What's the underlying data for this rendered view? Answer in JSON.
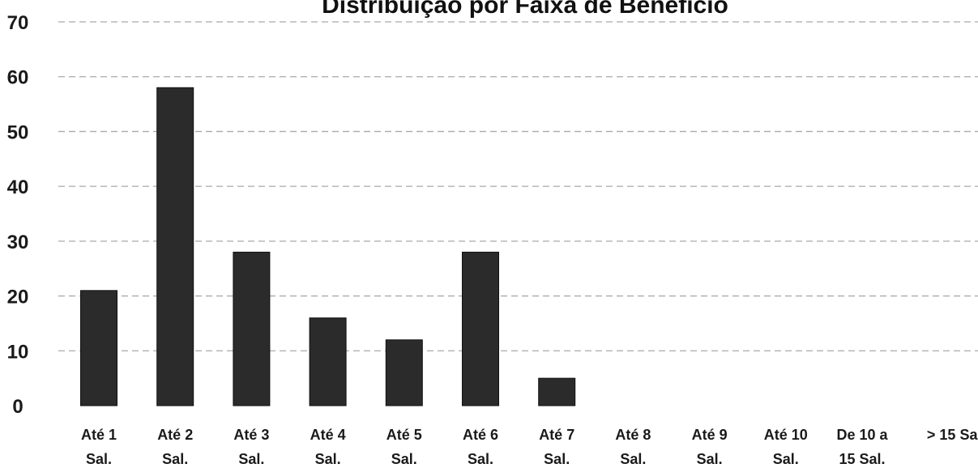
{
  "chart_data": {
    "type": "bar",
    "title": "Distribuição por Faixa de Benefício",
    "categories": [
      [
        "Até 1",
        "Sal."
      ],
      [
        "Até 2",
        "Sal."
      ],
      [
        "Até 3",
        "Sal."
      ],
      [
        "Até 4",
        "Sal."
      ],
      [
        "Até 5",
        "Sal."
      ],
      [
        "Até 6",
        "Sal."
      ],
      [
        "Até 7",
        "Sal."
      ],
      [
        "Até 8",
        "Sal."
      ],
      [
        "Até 9",
        "Sal."
      ],
      [
        "Até 10",
        "Sal."
      ],
      [
        "De 10 a",
        "15 Sal."
      ],
      [
        "> 15 Sal."
      ]
    ],
    "values": [
      21,
      58,
      28,
      16,
      12,
      28,
      5,
      0,
      0,
      0,
      0,
      0
    ],
    "xlabel": "",
    "ylabel": "",
    "ylim": [
      0,
      70
    ],
    "yticks": [
      0,
      10,
      20,
      30,
      40,
      50,
      60,
      70
    ],
    "grid": true,
    "legend": "none",
    "colors": {
      "bar": "#2b2b2b",
      "grid": "#a9a9a9",
      "text": "#1a1a1a"
    }
  }
}
